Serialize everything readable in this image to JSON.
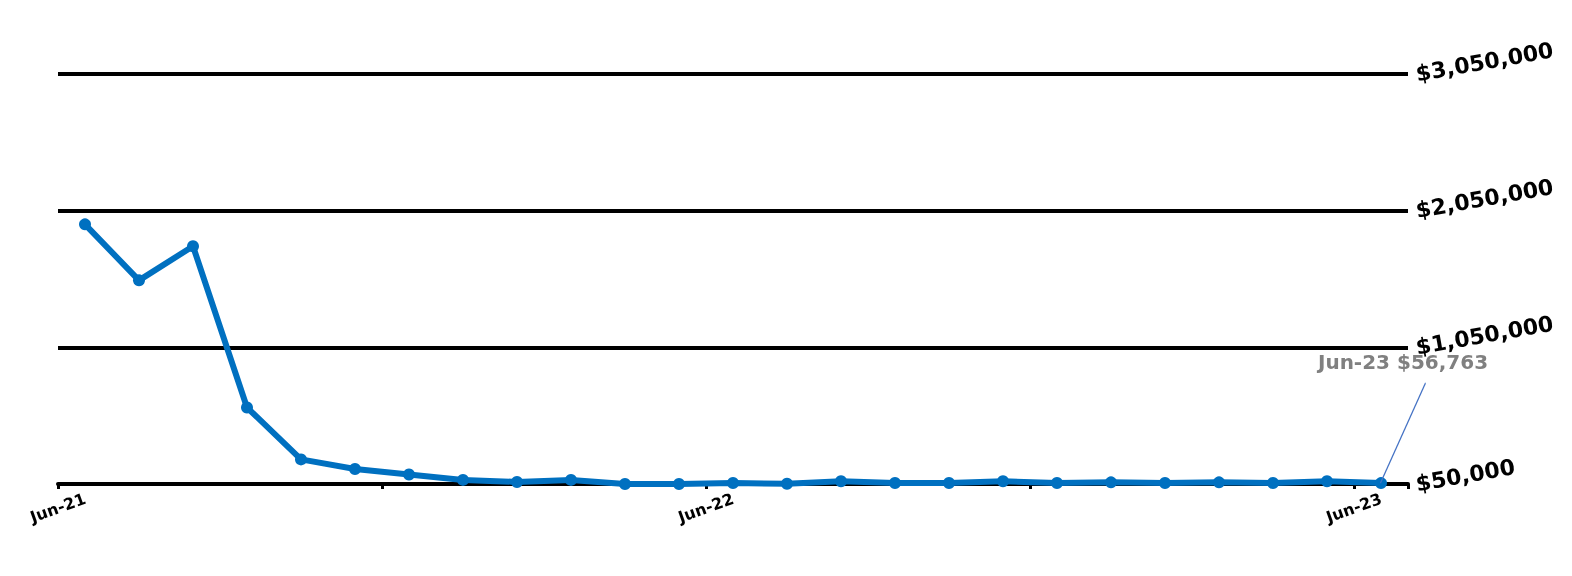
{
  "chart_data": {
    "type": "line",
    "categories": [
      "Jun-21",
      null,
      null,
      null,
      null,
      null,
      null,
      null,
      null,
      null,
      null,
      null,
      "Jun-22",
      null,
      null,
      null,
      null,
      null,
      null,
      null,
      null,
      null,
      null,
      null,
      "Jun-23"
    ],
    "series": [
      {
        "color": "#0070c0",
        "values": [
          1950000,
          1540000,
          1790000,
          610000,
          230000,
          160000,
          120000,
          80000,
          65000,
          80000,
          50000,
          50000,
          57000,
          52000,
          70000,
          57000,
          57000,
          70000,
          57000,
          62000,
          57000,
          62000,
          57000,
          70000,
          56763
        ]
      }
    ],
    "ylim": [
      50000,
      3050000
    ],
    "yticks": [
      {
        "value": 50000,
        "label": "$50,000"
      },
      {
        "value": 1050000,
        "label": "$1,050,000"
      },
      {
        "value": 2050000,
        "label": "$2,050,000"
      },
      {
        "value": 3050000,
        "label": "$3,050,000"
      }
    ],
    "grid": "y",
    "marker": "circle",
    "line_style": "solid",
    "annotations": [
      {
        "text": "Jun-23 $56,763",
        "x": "Jun-23",
        "y": 56763
      }
    ]
  }
}
